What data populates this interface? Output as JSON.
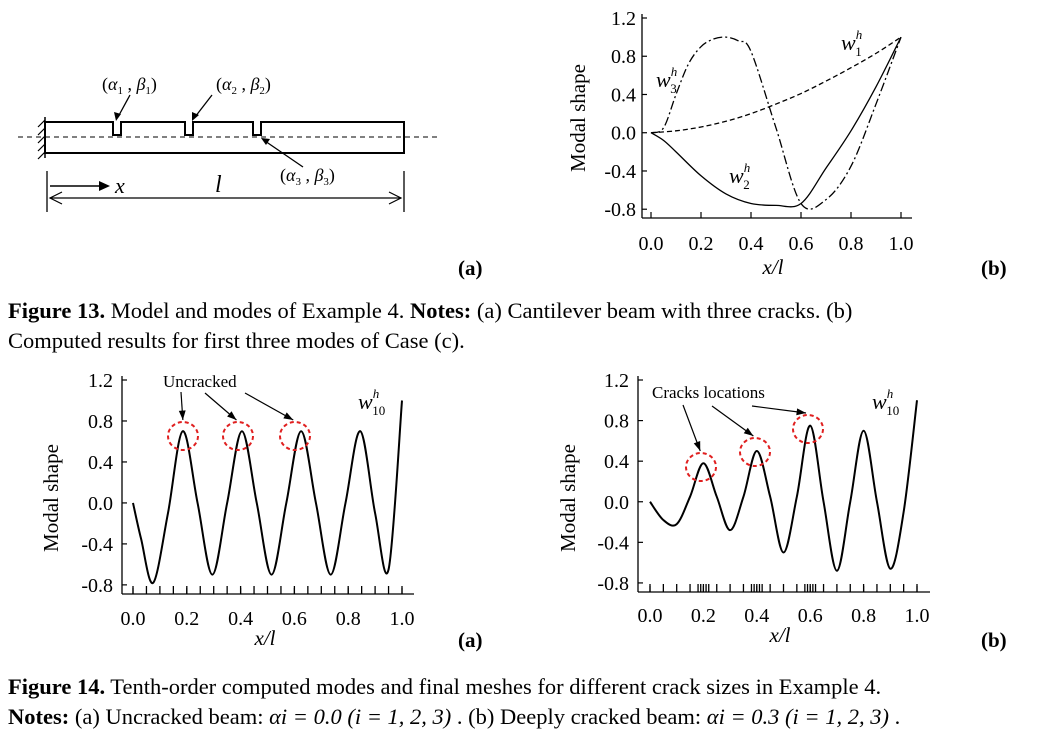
{
  "figure13": {
    "panel_a": {
      "label": "(a)",
      "crack_labels": [
        {
          "a": "α",
          "ai": "1",
          "b": "β",
          "bi": "1"
        },
        {
          "a": "α",
          "ai": "2",
          "b": "β",
          "bi": "2"
        },
        {
          "a": "α",
          "ai": "3",
          "b": "β",
          "bi": "3"
        }
      ],
      "x_label": "x",
      "l_label": "l"
    },
    "panel_b": {
      "label": "(b)",
      "ylabel": "Modal shape",
      "xlabel": "x/l",
      "curve_labels": [
        {
          "base": "w",
          "sub": "1",
          "sup": "h"
        },
        {
          "base": "w",
          "sub": "2",
          "sup": "h"
        },
        {
          "base": "w",
          "sub": "3",
          "sup": "h"
        }
      ]
    },
    "caption": {
      "title": "Figure 13.",
      "text1": " Model and modes of Example 4. ",
      "notes": "Notes:",
      "text2": " (a) Cantilever beam with three cracks. (b)",
      "line2": "Computed results for first three modes of Case (c)."
    }
  },
  "figure14": {
    "panel_a": {
      "label": "(a)",
      "annotation": "Uncracked",
      "ylabel": "Modal shape",
      "xlabel": "x/l",
      "curve_label": {
        "base": "w",
        "sub": "10",
        "sup": "h"
      }
    },
    "panel_b": {
      "label": "(b)",
      "annotation": "Cracks locations",
      "ylabel": "Modal shape",
      "xlabel": "x/l",
      "curve_label": {
        "base": "w",
        "sub": "10",
        "sup": "h"
      }
    },
    "caption": {
      "title": "Figure 14.",
      "text1": " Tenth-order computed modes and final meshes for different crack sizes in Example 4.",
      "notes": "Notes:",
      "text2a": " (a) Uncracked beam:  ",
      "eq_a": "αi = 0.0 (i = 1, 2, 3)",
      "text2b": " . (b) Deeply cracked beam: ",
      "eq_b": "αi = 0.3 (i = 1, 2, 3)",
      "text2c": " ."
    }
  },
  "chart_data": [
    {
      "id": "fig13b",
      "type": "line",
      "xlim": [
        0,
        1
      ],
      "ylim": [
        -0.85,
        1.2
      ],
      "xticks": [
        "0.0",
        "0.2",
        "0.4",
        "0.6",
        "0.8",
        "1.0"
      ],
      "yticks": [
        "1.2",
        "0.8",
        "0.4",
        "0.0",
        "-0.4",
        "-0.8"
      ],
      "series": [
        {
          "name": "w1h",
          "style": "dashed",
          "x": [
            0,
            0.1,
            0.2,
            0.3,
            0.4,
            0.5,
            0.6,
            0.7,
            0.8,
            0.9,
            1.0
          ],
          "y": [
            0,
            0.02,
            0.06,
            0.12,
            0.2,
            0.3,
            0.41,
            0.54,
            0.68,
            0.83,
            1.0
          ]
        },
        {
          "name": "w2h",
          "style": "solid",
          "x": [
            0,
            0.05,
            0.1,
            0.2,
            0.3,
            0.4,
            0.5,
            0.6,
            0.7,
            0.8,
            0.9,
            1.0
          ],
          "y": [
            0,
            -0.08,
            -0.2,
            -0.45,
            -0.64,
            -0.74,
            -0.76,
            -0.74,
            -0.37,
            0.02,
            0.48,
            1.0
          ]
        },
        {
          "name": "w3h",
          "style": "dashdot",
          "x": [
            0,
            0.05,
            0.1,
            0.15,
            0.2,
            0.25,
            0.3,
            0.35,
            0.4,
            0.5,
            0.6,
            0.7,
            0.8,
            0.9,
            1.0
          ],
          "y": [
            0,
            0.05,
            0.4,
            0.72,
            0.9,
            0.98,
            1.0,
            0.96,
            0.85,
            0.05,
            -0.74,
            -0.7,
            -0.35,
            0.3,
            1.0
          ]
        }
      ]
    },
    {
      "id": "fig14a",
      "type": "line",
      "xlim": [
        0,
        1
      ],
      "ylim": [
        -0.85,
        1.2
      ],
      "xticks": [
        "0.0",
        "0.2",
        "0.4",
        "0.6",
        "0.8",
        "1.0"
      ],
      "yticks": [
        "1.2",
        "0.8",
        "0.4",
        "0.0",
        "-0.4",
        "-0.8"
      ],
      "series": [
        {
          "name": "w10h",
          "x": [
            0,
            0.03,
            0.075,
            0.13,
            0.185,
            0.24,
            0.295,
            0.35,
            0.405,
            0.46,
            0.515,
            0.57,
            0.625,
            0.68,
            0.735,
            0.79,
            0.845,
            0.9,
            0.95,
            1.0
          ],
          "y": [
            0,
            -0.35,
            -0.78,
            -0.1,
            0.7,
            0.0,
            -0.7,
            0.0,
            0.7,
            0.0,
            -0.7,
            0.0,
            0.7,
            0.0,
            -0.7,
            0.0,
            0.7,
            -0.1,
            -0.65,
            1.0
          ]
        }
      ],
      "ticks_mesh": [
        0.0,
        0.05,
        0.1,
        0.15,
        0.2,
        0.25,
        0.3,
        0.35,
        0.4,
        0.45,
        0.5,
        0.55,
        0.6,
        0.65,
        0.7,
        0.75,
        0.8,
        0.85,
        0.9,
        0.95,
        1.0
      ]
    },
    {
      "id": "fig14b",
      "type": "line",
      "xlim": [
        0,
        1
      ],
      "ylim": [
        -0.85,
        1.2
      ],
      "xticks": [
        "0.0",
        "0.2",
        "0.4",
        "0.6",
        "0.8",
        "1.0"
      ],
      "yticks": [
        "1.2",
        "0.8",
        "0.4",
        "0.0",
        "-0.4",
        "-0.8"
      ],
      "series": [
        {
          "name": "w10h",
          "x": [
            0,
            0.05,
            0.1,
            0.15,
            0.2,
            0.25,
            0.3,
            0.35,
            0.4,
            0.45,
            0.5,
            0.55,
            0.6,
            0.65,
            0.7,
            0.75,
            0.8,
            0.85,
            0.9,
            0.95,
            1.0
          ],
          "y": [
            0,
            -0.18,
            -0.22,
            0.05,
            0.38,
            0.05,
            -0.28,
            0.05,
            0.5,
            0.05,
            -0.5,
            0.05,
            0.75,
            0.0,
            -0.68,
            0.0,
            0.7,
            0.0,
            -0.66,
            -0.1,
            1.0
          ]
        }
      ],
      "ticks_mesh": [
        0.0,
        0.05,
        0.1,
        0.15,
        0.18,
        0.19,
        0.2,
        0.21,
        0.22,
        0.25,
        0.3,
        0.35,
        0.38,
        0.39,
        0.4,
        0.41,
        0.42,
        0.45,
        0.5,
        0.55,
        0.58,
        0.59,
        0.6,
        0.61,
        0.62,
        0.65,
        0.7,
        0.75,
        0.8,
        0.85,
        0.9,
        0.95,
        1.0
      ]
    }
  ]
}
